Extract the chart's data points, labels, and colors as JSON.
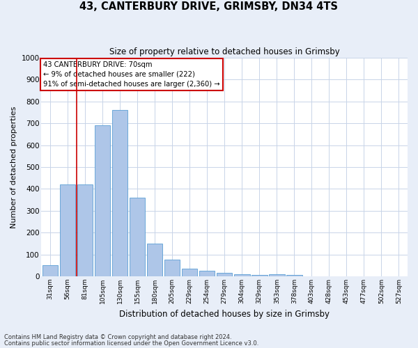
{
  "title1": "43, CANTERBURY DRIVE, GRIMSBY, DN34 4TS",
  "title2": "Size of property relative to detached houses in Grimsby",
  "xlabel": "Distribution of detached houses by size in Grimsby",
  "ylabel": "Number of detached properties",
  "bar_labels": [
    "31sqm",
    "56sqm",
    "81sqm",
    "105sqm",
    "130sqm",
    "155sqm",
    "180sqm",
    "205sqm",
    "229sqm",
    "254sqm",
    "279sqm",
    "304sqm",
    "329sqm",
    "353sqm",
    "378sqm",
    "403sqm",
    "428sqm",
    "453sqm",
    "477sqm",
    "502sqm",
    "527sqm"
  ],
  "bar_values": [
    50,
    420,
    420,
    690,
    760,
    360,
    150,
    75,
    35,
    25,
    15,
    10,
    5,
    10,
    5,
    0,
    0,
    0,
    0,
    0,
    0
  ],
  "bar_color": "#aec6e8",
  "bar_edgecolor": "#5a9fd4",
  "vline_x_index": 1.5,
  "ylim": [
    0,
    1000
  ],
  "yticks": [
    0,
    100,
    200,
    300,
    400,
    500,
    600,
    700,
    800,
    900,
    1000
  ],
  "grid_color": "#c8d4e8",
  "annotation_title": "43 CANTERBURY DRIVE: 70sqm",
  "annotation_line1": "← 9% of detached houses are smaller (222)",
  "annotation_line2": "91% of semi-detached houses are larger (2,360) →",
  "annotation_box_edgecolor": "#cc0000",
  "vline_color": "#cc0000",
  "footnote1": "Contains HM Land Registry data © Crown copyright and database right 2024.",
  "footnote2": "Contains public sector information licensed under the Open Government Licence v3.0.",
  "bg_color": "#e8eef8",
  "plot_bg_color": "#ffffff"
}
